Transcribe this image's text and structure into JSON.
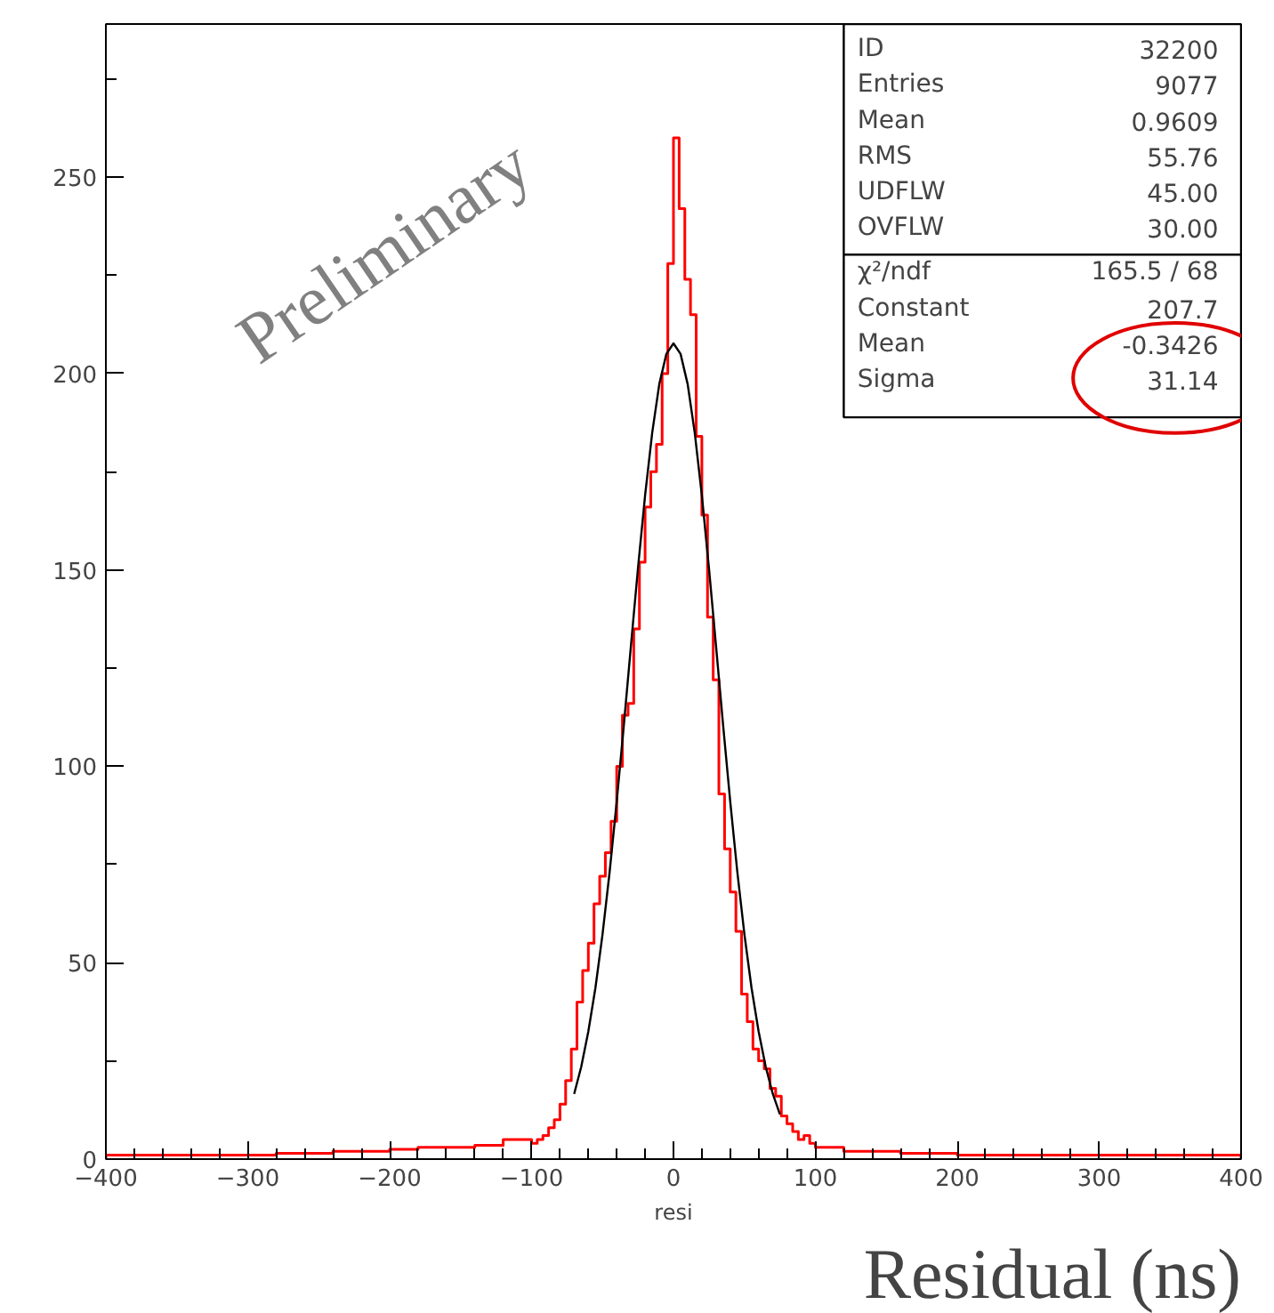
{
  "chart_data": {
    "type": "histogram",
    "xlabel": "resi",
    "bins": [
      -400,
      -380,
      -360,
      -340,
      -320,
      -300,
      -280,
      -260,
      -240,
      -220,
      -200,
      -180,
      -160,
      -140,
      -120,
      -100,
      -96,
      -92,
      -88,
      -84,
      -80,
      -76,
      -72,
      -68,
      -64,
      -60,
      -56,
      -52,
      -48,
      -44,
      -40,
      -36,
      -32,
      -28,
      -24,
      -20,
      -16,
      -12,
      -8,
      -4,
      0,
      4,
      8,
      12,
      16,
      20,
      24,
      28,
      32,
      36,
      40,
      44,
      48,
      52,
      56,
      60,
      64,
      68,
      72,
      76,
      80,
      84,
      88,
      92,
      96,
      100,
      120,
      140,
      160,
      180,
      200,
      220,
      240,
      260,
      280,
      300,
      320,
      340,
      360,
      380,
      400
    ],
    "values": [
      1,
      1,
      1,
      1,
      1,
      1,
      1.5,
      1.5,
      2,
      2,
      2.5,
      3,
      3,
      3.5,
      5,
      4,
      5,
      6,
      8,
      10,
      14,
      20,
      28,
      40,
      48,
      55,
      65,
      72,
      78,
      86,
      100,
      113,
      116,
      135,
      152,
      166,
      175,
      182,
      200,
      228,
      260,
      242,
      224,
      215,
      184,
      164,
      138,
      122,
      93,
      79,
      68,
      58,
      42,
      35,
      28,
      25,
      23,
      18,
      16,
      11,
      9,
      7,
      5,
      6,
      4,
      3,
      2,
      2,
      1.5,
      1.5,
      1,
      1,
      1,
      1,
      1,
      1,
      1,
      1,
      1,
      1
    ],
    "color": "#ff0000",
    "series": [
      {
        "type": "line",
        "color": "#000000",
        "x": [
          -70,
          -65,
          -60,
          -55,
          -50,
          -45,
          -40,
          -35,
          -30,
          -25,
          -20,
          -15,
          -10,
          -5,
          0,
          5,
          10,
          15,
          20,
          25,
          30,
          35,
          40,
          45,
          50,
          55,
          60,
          65,
          70,
          75
        ],
        "values": [
          16.6,
          23.5,
          32.5,
          43.6,
          57.2,
          73.1,
          91.0,
          110.4,
          130.6,
          150.5,
          169.0,
          184.9,
          197.3,
          205.0,
          207.7,
          205.0,
          197.3,
          184.9,
          169.0,
          150.5,
          130.6,
          110.4,
          91.0,
          73.1,
          57.2,
          43.6,
          32.5,
          23.5,
          16.6,
          11.4
        ]
      }
    ],
    "xlim": [
      -400,
      400
    ],
    "ylim": [
      0,
      289
    ],
    "xticks": [
      -400,
      -300,
      -200,
      -100,
      0,
      100,
      200,
      300,
      400
    ],
    "yticks": [
      0,
      50,
      100,
      150,
      200,
      250
    ],
    "grid": false,
    "annotations": [
      "ID 32200",
      "Entries 9077",
      "Mean 0.9609",
      "RMS 55.76",
      "UDFLW 45.00",
      "OVFLW 30.00",
      "χ²/ndf 165.5 / 68",
      "Constant 207.7",
      "Mean -0.3426",
      "Sigma 31.14",
      "Preliminary",
      "Residual (ns)"
    ]
  }
}
